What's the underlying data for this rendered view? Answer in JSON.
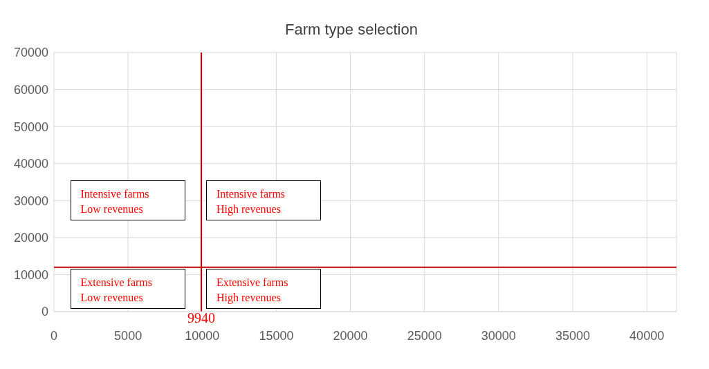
{
  "chart_data": {
    "type": "scatter",
    "title": "Farm type selection",
    "xlim": [
      0,
      42000
    ],
    "xticks": [
      0,
      5000,
      10000,
      15000,
      20000,
      25000,
      30000,
      35000,
      40000
    ],
    "ylim": [
      0,
      70000
    ],
    "yticks": [
      0,
      10000,
      20000,
      30000,
      40000,
      50000,
      60000,
      70000
    ],
    "grid": true,
    "ref_lines": [
      {
        "axis": "x",
        "value": 9940,
        "label": "9940",
        "color": "#c00000"
      },
      {
        "axis": "y",
        "value": 12000,
        "color": "#c00000"
      }
    ],
    "annotations": [
      "Intensive farms\nLow revenues",
      "Intensive farms\nHigh revenues",
      "Extensive farms\nLow revenues",
      "Extensive farms\nHigh revenues"
    ]
  }
}
